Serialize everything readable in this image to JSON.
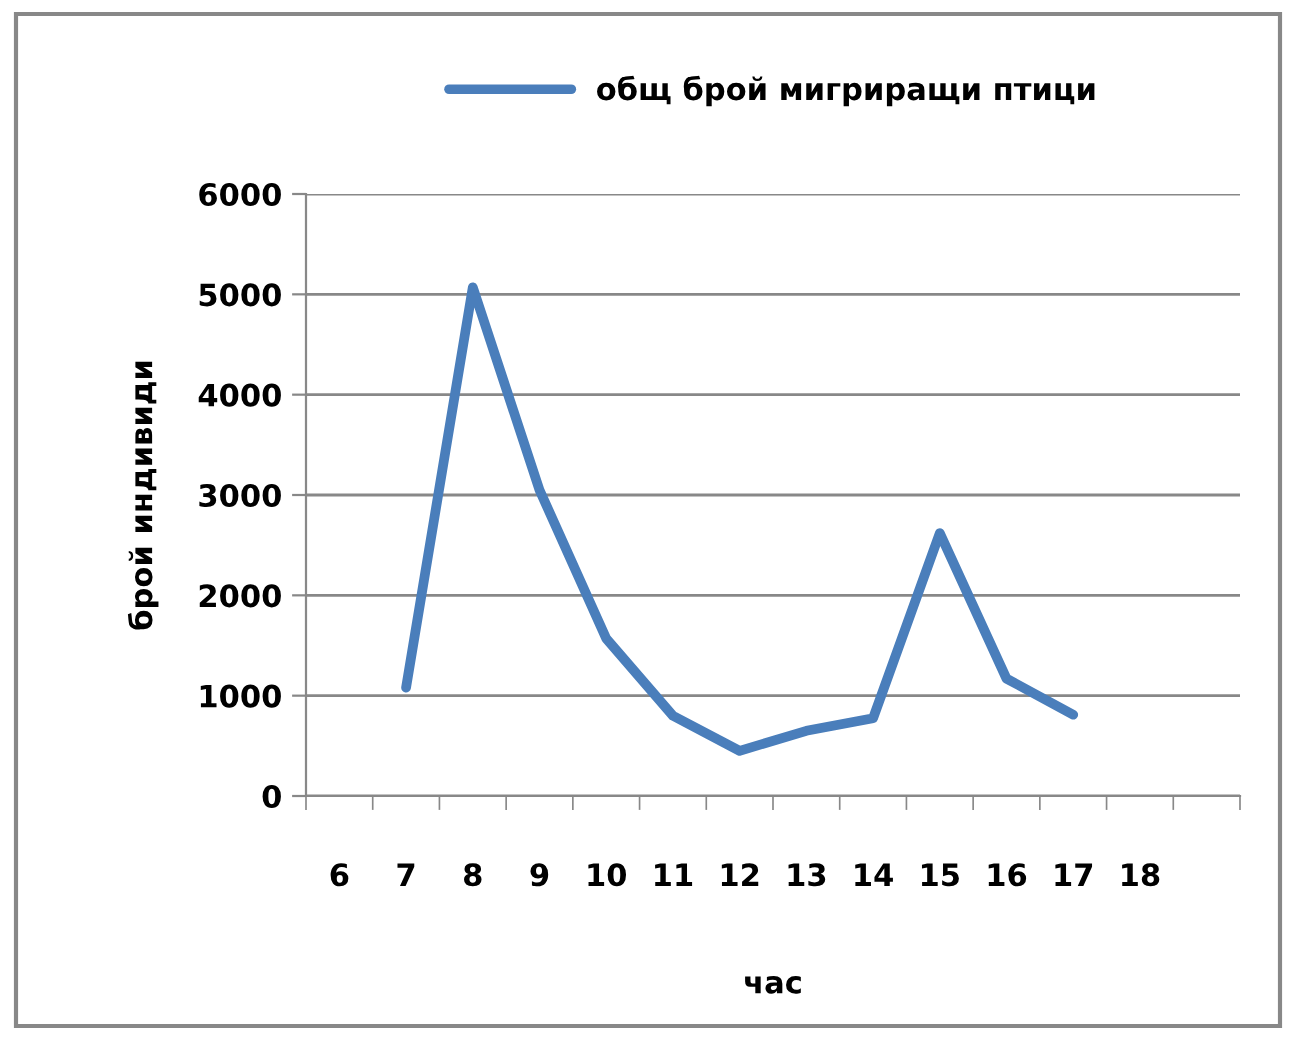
{
  "chart_data": {
    "type": "line",
    "xlabel": "час",
    "ylabel": "брой индивиди",
    "categories": [
      "6",
      "7",
      "8",
      "9",
      "10",
      "11",
      "12",
      "13",
      "14",
      "15",
      "16",
      "17",
      "18",
      null
    ],
    "series": [
      {
        "name": "общ брой мигриращи птици",
        "color": "#4a7ebb",
        "values": [
          null,
          1080,
          5070,
          3050,
          1570,
          800,
          450,
          650,
          775,
          2620,
          1170,
          810,
          null,
          null
        ]
      }
    ],
    "ylim": [
      0,
      6000
    ],
    "yticks": [
      0,
      1000,
      2000,
      3000,
      4000,
      5000,
      6000
    ],
    "grid": "y",
    "legend": "top",
    "marker": "none",
    "line_style": "solid"
  }
}
